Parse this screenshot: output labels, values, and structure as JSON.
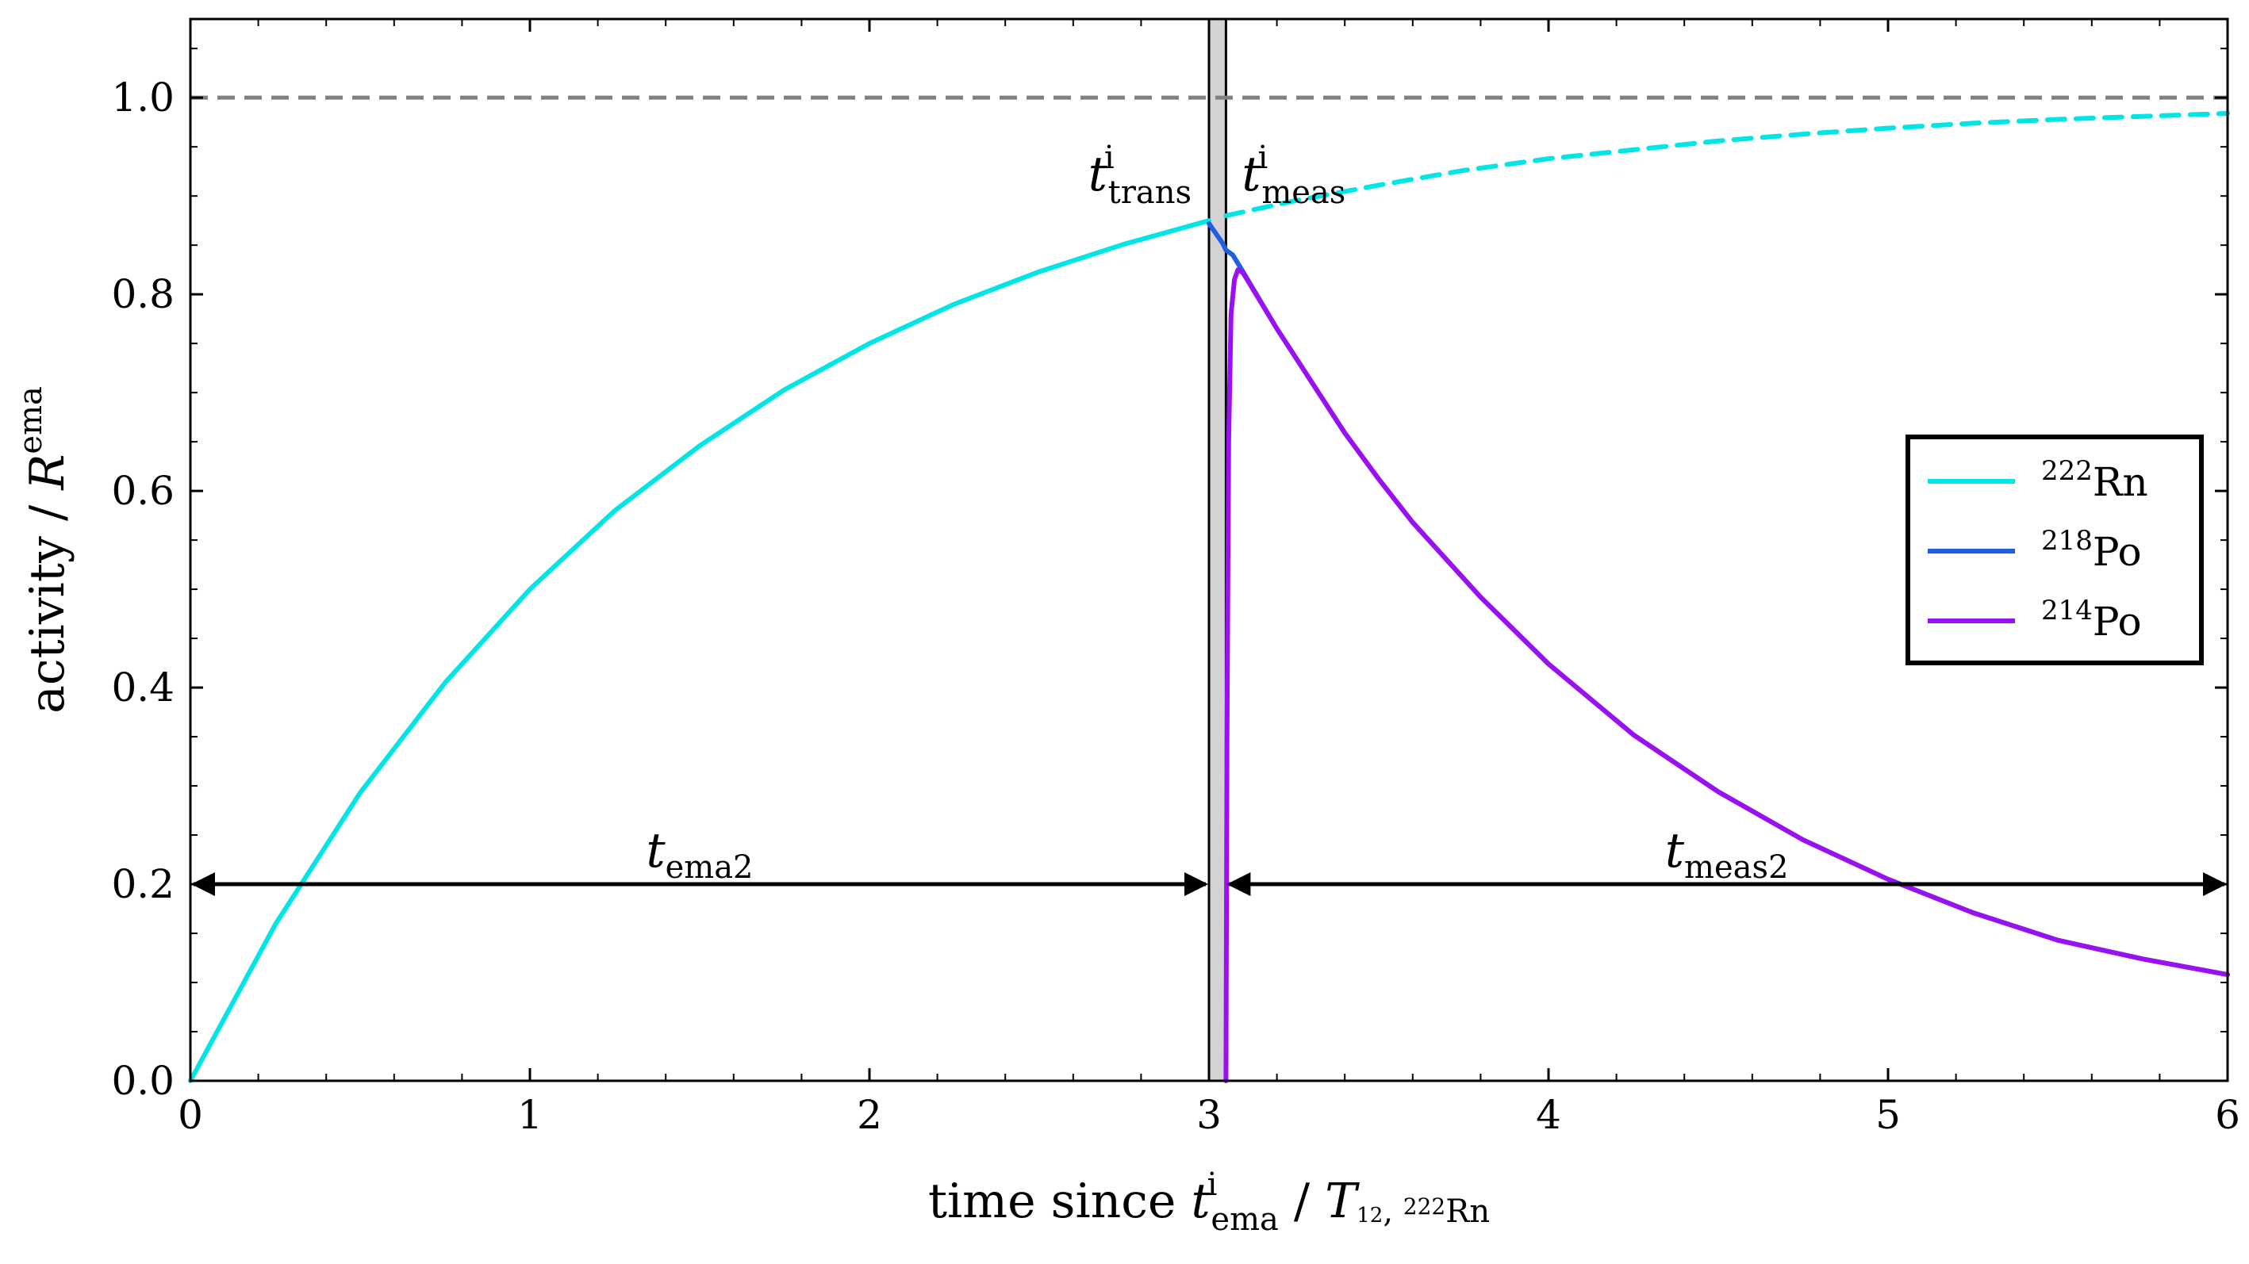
{
  "chart_data": {
    "type": "line",
    "xlabel": {
      "prefix": "time since ",
      "var": "t",
      "var_sup": "i",
      "var_sub": "ema",
      "separator": " / ",
      "unit_var": "T",
      "unit_sub_num": "1",
      "unit_sub_den": "2",
      "unit_sub_rest": ", ",
      "unit_sub_mass": "222",
      "unit_sub_elem": "Rn"
    },
    "ylabel": {
      "text": "activity / ",
      "var": "R",
      "var_sup": "ema"
    },
    "xlim": [
      0,
      6
    ],
    "ylim": [
      0,
      1.08
    ],
    "xticks": [
      0,
      1,
      2,
      3,
      4,
      5,
      6
    ],
    "xtick_labels": [
      "0",
      "1",
      "2",
      "3",
      "4",
      "5",
      "6"
    ],
    "yticks": [
      0.0,
      0.2,
      0.4,
      0.6,
      0.8,
      1.0
    ],
    "ytick_labels": [
      "0.0",
      "0.2",
      "0.4",
      "0.6",
      "0.8",
      "1.0"
    ],
    "grid": false,
    "legend_position": "center-right",
    "reference_line": {
      "y": 1.0,
      "style": "dashed",
      "color": "#808080"
    },
    "transfer_band": {
      "x_start": 3.0,
      "x_end": 3.05,
      "fill": "#d3d3d3"
    },
    "series": [
      {
        "name_mass": "222",
        "name_elem": "Rn",
        "color": "#00e5e5",
        "x": [
          0,
          0.25,
          0.5,
          0.75,
          1.0,
          1.25,
          1.5,
          1.75,
          2.0,
          2.25,
          2.5,
          2.75,
          3.0
        ],
        "y": [
          0,
          0.159,
          0.293,
          0.405,
          0.5,
          0.58,
          0.646,
          0.703,
          0.75,
          0.79,
          0.823,
          0.851,
          0.875
        ]
      },
      {
        "name_mass": "222",
        "name_elem": "Rn",
        "color": "#00e5e5",
        "style": "dashed",
        "x": [
          3.05,
          3.25,
          3.5,
          3.75,
          4.0,
          4.25,
          4.5,
          4.75,
          5.0,
          5.25,
          5.5,
          5.75,
          6.0
        ],
        "y": [
          0.88,
          0.895,
          0.911,
          0.926,
          0.938,
          0.947,
          0.956,
          0.963,
          0.969,
          0.974,
          0.978,
          0.981,
          0.984
        ]
      },
      {
        "name_mass": "218",
        "name_elem": "Po",
        "color": "#1f5fe0",
        "x": [
          3.0,
          3.02,
          3.04,
          3.05,
          3.07,
          3.1,
          3.2,
          3.3,
          3.4,
          3.5,
          3.6,
          3.8,
          4.0,
          4.25,
          4.5,
          4.75,
          5.0,
          5.25,
          5.5,
          5.75,
          6.0
        ],
        "y": [
          0.872,
          0.862,
          0.852,
          0.845,
          0.84,
          0.823,
          0.765,
          0.712,
          0.659,
          0.612,
          0.568,
          0.492,
          0.424,
          0.352,
          0.294,
          0.245,
          0.205,
          0.171,
          0.143,
          0.124,
          0.108
        ]
      },
      {
        "name_mass": "214",
        "name_elem": "Po",
        "color": "#9b10f0",
        "x": [
          3.05,
          3.053,
          3.058,
          3.065,
          3.075,
          3.085,
          3.1,
          3.2,
          3.3,
          3.4,
          3.5,
          3.6,
          3.8,
          4.0,
          4.25,
          4.5,
          4.75,
          5.0,
          5.25,
          5.5,
          5.75,
          6.0
        ],
        "y": [
          0.0,
          0.35,
          0.65,
          0.78,
          0.815,
          0.825,
          0.822,
          0.765,
          0.712,
          0.659,
          0.612,
          0.568,
          0.492,
          0.424,
          0.352,
          0.294,
          0.245,
          0.205,
          0.171,
          0.143,
          0.124,
          0.108
        ]
      }
    ],
    "legend": [
      {
        "mass": "222",
        "elem": "Rn",
        "color": "#00e5e5"
      },
      {
        "mass": "218",
        "elem": "Po",
        "color": "#1f5fe0"
      },
      {
        "mass": "214",
        "elem": "Po",
        "color": "#9b10f0"
      }
    ],
    "annotations": {
      "t_trans": {
        "var": "t",
        "sup": "i",
        "sub": "trans"
      },
      "t_meas": {
        "var": "t",
        "sup": "i",
        "sub": "meas"
      },
      "t_ema2": {
        "var": "t",
        "sub": "ema2",
        "x_start": 0,
        "x_end": 3.0,
        "y": 0.2
      },
      "t_meas2": {
        "var": "t",
        "sub": "meas2",
        "x_start": 3.05,
        "x_end": 6.0,
        "y": 0.2
      }
    }
  }
}
